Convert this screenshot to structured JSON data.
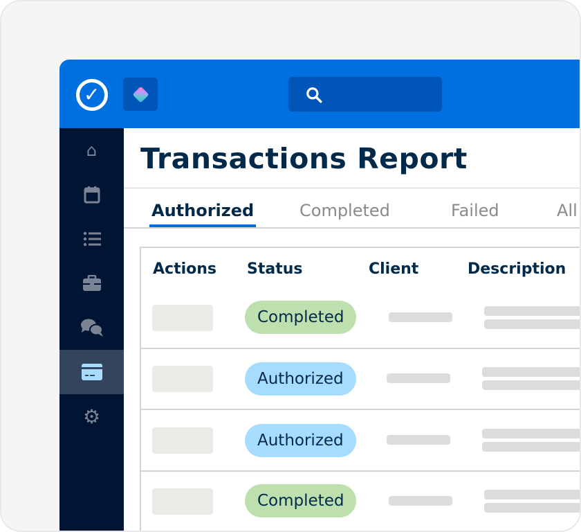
{
  "header": {
    "logo_icon": "checkmark-circle-icon",
    "app_icon": "diamond-gradient-icon",
    "search_icon": "search-icon",
    "colors": {
      "header": "#0070e0",
      "sidebar": "#001533",
      "active": "#34445c"
    }
  },
  "sidebar": {
    "items": [
      {
        "icon": "home-icon"
      },
      {
        "icon": "calendar-icon"
      },
      {
        "icon": "list-icon"
      },
      {
        "icon": "briefcase-icon"
      },
      {
        "icon": "chat-icon"
      },
      {
        "icon": "credit-card-icon",
        "active": true
      },
      {
        "icon": "gear-icon"
      }
    ]
  },
  "page": {
    "title": "Transactions Report"
  },
  "tabs": [
    {
      "label": "Authorized",
      "active": true
    },
    {
      "label": "Completed"
    },
    {
      "label": "Failed"
    },
    {
      "label": "All"
    }
  ],
  "table": {
    "columns": [
      "Actions",
      "Status",
      "Client",
      "Description"
    ],
    "rows": [
      {
        "status": "Completed",
        "color": "#bde0ae"
      },
      {
        "status": "Authorized",
        "color": "#a6dcff"
      },
      {
        "status": "Authorized",
        "color": "#a6dcff"
      },
      {
        "status": "Completed",
        "color": "#bde0ae"
      }
    ]
  }
}
